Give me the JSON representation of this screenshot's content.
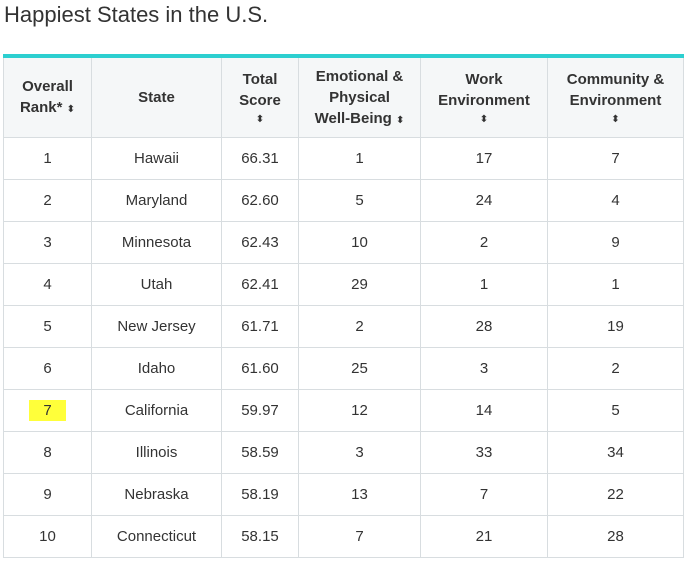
{
  "page": {
    "title": "Happiest States in the U.S."
  },
  "table": {
    "columns": [
      {
        "key": "rank",
        "line1": "Overall",
        "line2": "Rank*",
        "sort_icon": "sort-icon",
        "sort_glyph": "⬍"
      },
      {
        "key": "state",
        "line1": "State",
        "line2": "",
        "sort_icon": "",
        "sort_glyph": ""
      },
      {
        "key": "total",
        "line1": "Total",
        "line2": "Score",
        "sort_icon": "sort-icon",
        "sort_glyph": "⬍"
      },
      {
        "key": "emotional",
        "line1": "Emotional &",
        "line2": "Physical",
        "line3": "Well-Being",
        "sort_icon": "sort-icon",
        "sort_glyph": "⬍"
      },
      {
        "key": "work",
        "line1": "Work",
        "line2": "Environment",
        "sort_icon": "sort-icon",
        "sort_glyph": "⬍"
      },
      {
        "key": "community",
        "line1": "Community &",
        "line2": "Environment",
        "sort_icon": "sort-icon",
        "sort_glyph": "⬍"
      }
    ],
    "rows": [
      {
        "rank": "1",
        "state": "Hawaii",
        "total": "66.31",
        "emotional": "1",
        "work": "17",
        "community": "7",
        "highlighted": false
      },
      {
        "rank": "2",
        "state": "Maryland",
        "total": "62.60",
        "emotional": "5",
        "work": "24",
        "community": "4",
        "highlighted": false
      },
      {
        "rank": "3",
        "state": "Minnesota",
        "total": "62.43",
        "emotional": "10",
        "work": "2",
        "community": "9",
        "highlighted": false
      },
      {
        "rank": "4",
        "state": "Utah",
        "total": "62.41",
        "emotional": "29",
        "work": "1",
        "community": "1",
        "highlighted": false
      },
      {
        "rank": "5",
        "state": "New Jersey",
        "total": "61.71",
        "emotional": "2",
        "work": "28",
        "community": "19",
        "highlighted": false
      },
      {
        "rank": "6",
        "state": "Idaho",
        "total": "61.60",
        "emotional": "25",
        "work": "3",
        "community": "2",
        "highlighted": false
      },
      {
        "rank": "7",
        "state": "California",
        "total": "59.97",
        "emotional": "12",
        "work": "14",
        "community": "5",
        "highlighted": true
      },
      {
        "rank": "8",
        "state": "Illinois",
        "total": "58.59",
        "emotional": "3",
        "work": "33",
        "community": "34",
        "highlighted": false
      },
      {
        "rank": "9",
        "state": "Nebraska",
        "total": "58.19",
        "emotional": "13",
        "work": "7",
        "community": "22",
        "highlighted": false
      },
      {
        "rank": "10",
        "state": "Connecticut",
        "total": "58.15",
        "emotional": "7",
        "work": "21",
        "community": "28",
        "highlighted": false
      }
    ]
  },
  "colors": {
    "accent_border": "#2ccfd0",
    "header_bg": "#f5f7f8",
    "highlight": "#ffff3a",
    "grid": "#d8dde0",
    "text": "#333333"
  }
}
